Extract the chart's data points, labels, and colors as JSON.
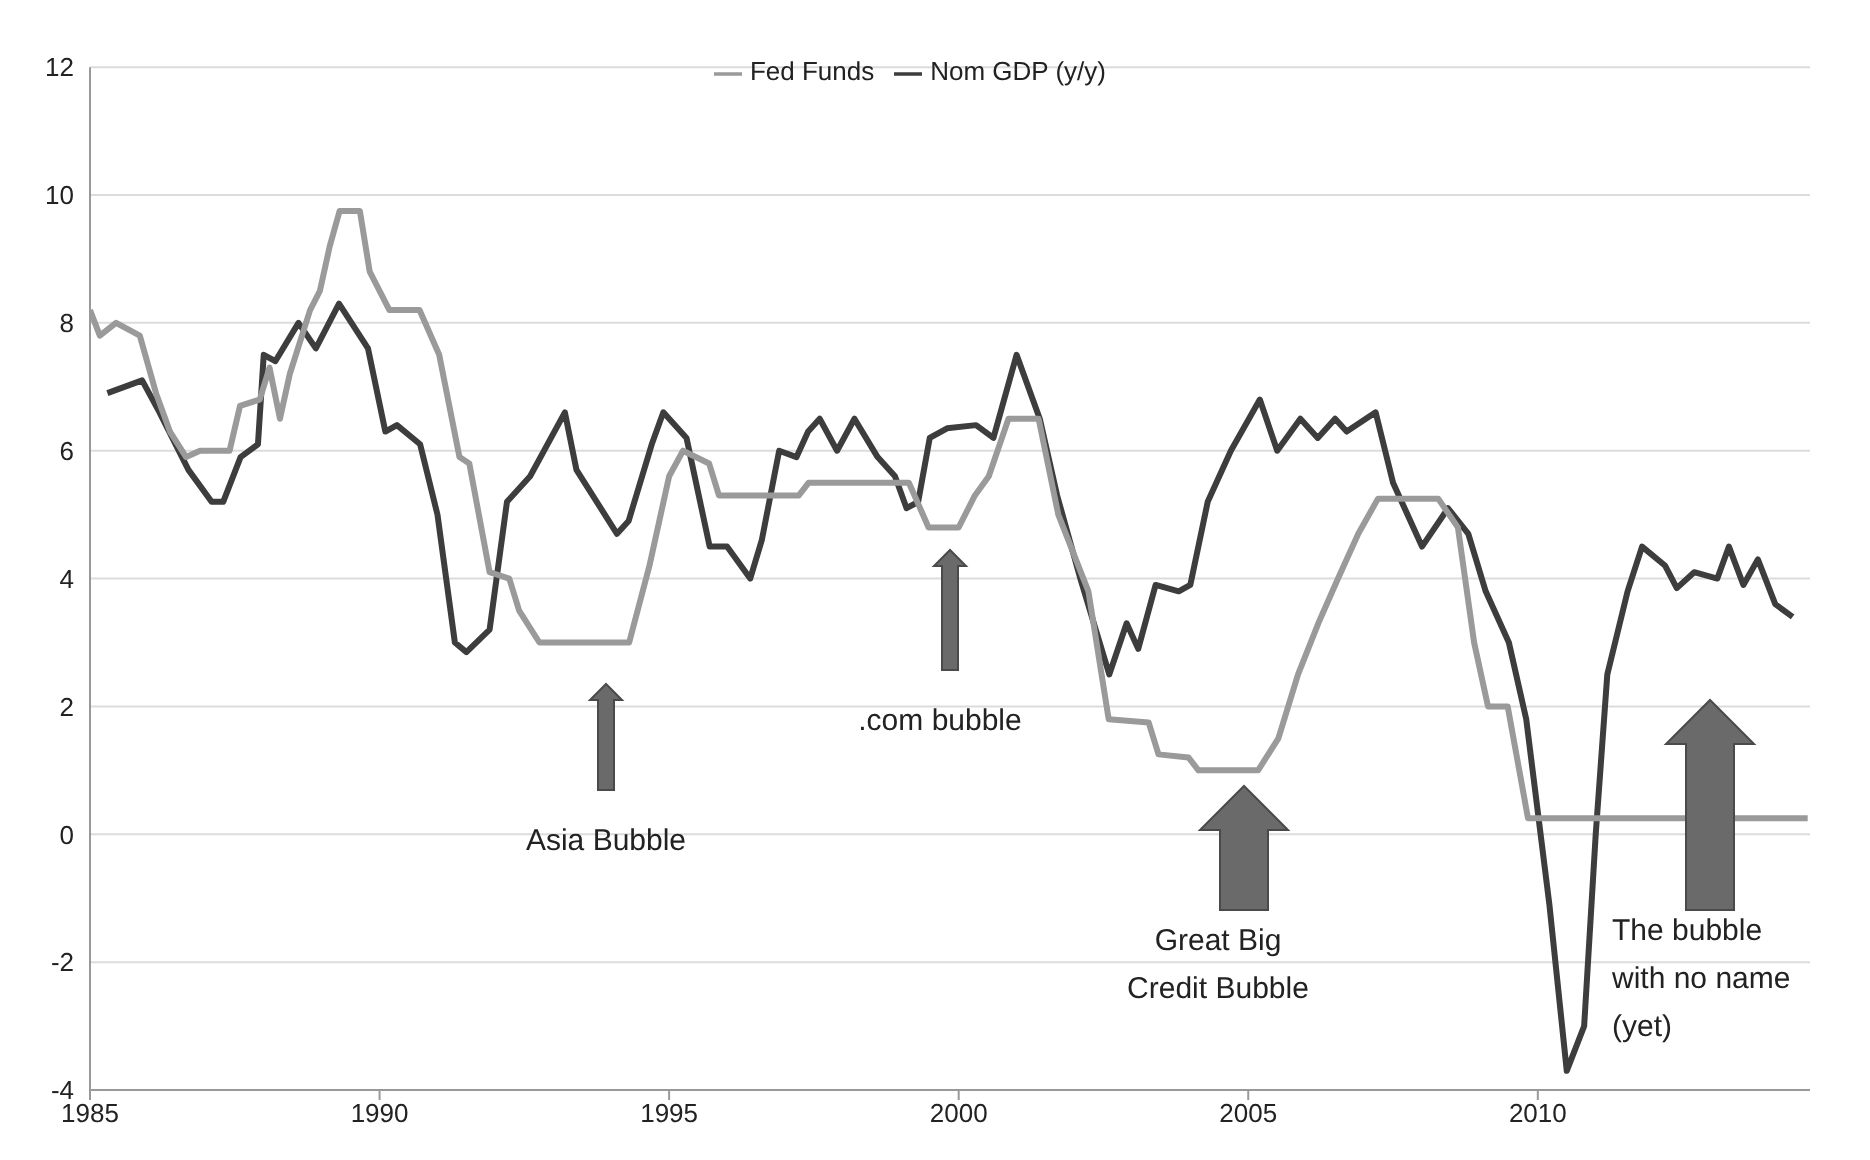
{
  "chart_data": {
    "type": "line",
    "xlim": [
      1985,
      2014.7
    ],
    "xticks": [
      1985,
      1990,
      1995,
      2000,
      2005,
      2010
    ],
    "ylim": [
      -4,
      12
    ],
    "yticks": [
      -4,
      -2,
      0,
      2,
      4,
      6,
      8,
      10,
      12
    ],
    "grid": "y",
    "legend": "top",
    "marker": "none",
    "line_style": "solid",
    "series": [
      {
        "name": "Nom GDP (y/y)",
        "color": "#3d3d3d",
        "x": [
          1985.3,
          1985.9,
          1986.2,
          1986.7,
          1987.1,
          1987.3,
          1987.6,
          1987.9,
          1988.0,
          1988.2,
          1988.6,
          1988.9,
          1989.3,
          1989.8,
          1990.1,
          1990.3,
          1990.7,
          1991.0,
          1991.3,
          1991.5,
          1991.9,
          1992.2,
          1992.6,
          1993.2,
          1993.4,
          1994.1,
          1994.3,
          1994.7,
          1994.9,
          1995.3,
          1995.7,
          1996.0,
          1996.4,
          1996.6,
          1996.9,
          1997.2,
          1997.4,
          1997.6,
          1997.9,
          1998.2,
          1998.6,
          1998.9,
          1999.1,
          1999.3,
          1999.5,
          1999.8,
          2000.3,
          2000.6,
          2001.0,
          2001.4,
          2001.7,
          2002.1,
          2002.6,
          2002.9,
          2003.1,
          2003.4,
          2003.8,
          2004.0,
          2004.3,
          2004.7,
          2005.2,
          2005.5,
          2005.9,
          2006.2,
          2006.5,
          2006.7,
          2007.2,
          2007.5,
          2008.0,
          2008.45,
          2008.8,
          2009.1,
          2009.5,
          2009.8,
          2010.2,
          2010.5,
          2010.8,
          2011.0,
          2011.2,
          2011.55,
          2011.8,
          2012.2,
          2012.4,
          2012.7,
          2013.1,
          2013.3,
          2013.55,
          2013.8,
          2014.1,
          2014.4
        ],
        "values": [
          6.9,
          7.1,
          6.6,
          5.7,
          5.2,
          5.2,
          5.9,
          6.1,
          7.5,
          7.4,
          8.0,
          7.6,
          8.3,
          7.6,
          6.3,
          6.4,
          6.1,
          5.0,
          3.0,
          2.85,
          3.2,
          5.2,
          5.6,
          6.6,
          5.7,
          4.7,
          4.9,
          6.1,
          6.6,
          6.2,
          4.5,
          4.5,
          4.0,
          4.6,
          6.0,
          5.9,
          6.3,
          6.5,
          6.0,
          6.5,
          5.9,
          5.6,
          5.1,
          5.2,
          6.2,
          6.35,
          6.4,
          6.2,
          7.5,
          6.5,
          5.3,
          4.0,
          2.5,
          3.3,
          2.9,
          3.9,
          3.8,
          3.9,
          5.2,
          6.0,
          6.8,
          6.0,
          6.5,
          6.2,
          6.5,
          6.3,
          6.6,
          5.5,
          4.5,
          5.1,
          4.7,
          3.8,
          3.0,
          1.8,
          -1.1,
          -3.7,
          -3.0,
          0,
          2.5,
          3.8,
          4.5,
          4.2,
          3.85,
          4.1,
          4.0,
          4.5,
          3.9,
          4.3,
          3.6,
          3.4
        ]
      },
      {
        "name": "Fed Funds",
        "color": "#9a9a9a",
        "x": [
          1985.0,
          1985.17,
          1985.45,
          1985.86,
          1986.14,
          1986.38,
          1986.66,
          1986.9,
          1987.41,
          1987.59,
          1987.93,
          1988.1,
          1988.28,
          1988.45,
          1988.8,
          1988.97,
          1989.14,
          1989.31,
          1989.66,
          1989.83,
          1990.17,
          1990.69,
          1991.03,
          1991.38,
          1991.55,
          1991.9,
          1992.24,
          1992.41,
          1992.76,
          1994.31,
          1994.66,
          1995.0,
          1995.24,
          1995.69,
          1995.86,
          1997.24,
          1997.41,
          1999.14,
          1999.48,
          2000.0,
          2000.28,
          2000.52,
          2000.86,
          2001.38,
          2001.72,
          2002.24,
          2002.59,
          2003.28,
          2003.45,
          2003.97,
          2004.14,
          2005.17,
          2005.52,
          2005.86,
          2006.21,
          2006.55,
          2006.9,
          2007.24,
          2008.28,
          2008.62,
          2008.9,
          2009.14,
          2009.48,
          2009.83,
          2014.66
        ],
        "values": [
          8.2,
          7.8,
          8.0,
          7.8,
          6.9,
          6.3,
          5.9,
          6.0,
          6.0,
          6.7,
          6.8,
          7.3,
          6.5,
          7.2,
          8.2,
          8.5,
          9.2,
          9.75,
          9.75,
          8.8,
          8.2,
          8.2,
          7.5,
          5.9,
          5.8,
          4.1,
          4.0,
          3.5,
          3.0,
          3.0,
          4.2,
          5.6,
          6.0,
          5.8,
          5.3,
          5.3,
          5.5,
          5.5,
          4.8,
          4.8,
          5.3,
          5.6,
          6.5,
          6.5,
          5.0,
          3.8,
          1.8,
          1.75,
          1.25,
          1.2,
          1.0,
          1.0,
          1.5,
          2.5,
          3.3,
          4.0,
          4.7,
          5.25,
          5.25,
          4.8,
          3.0,
          2.0,
          2.0,
          0.25,
          0.25
        ]
      }
    ],
    "annotations": [
      "Asia Bubble",
      ".com bubble",
      "Great Big\nCredit Bubble",
      "The bubble\nwith no name\n(yet)"
    ]
  }
}
